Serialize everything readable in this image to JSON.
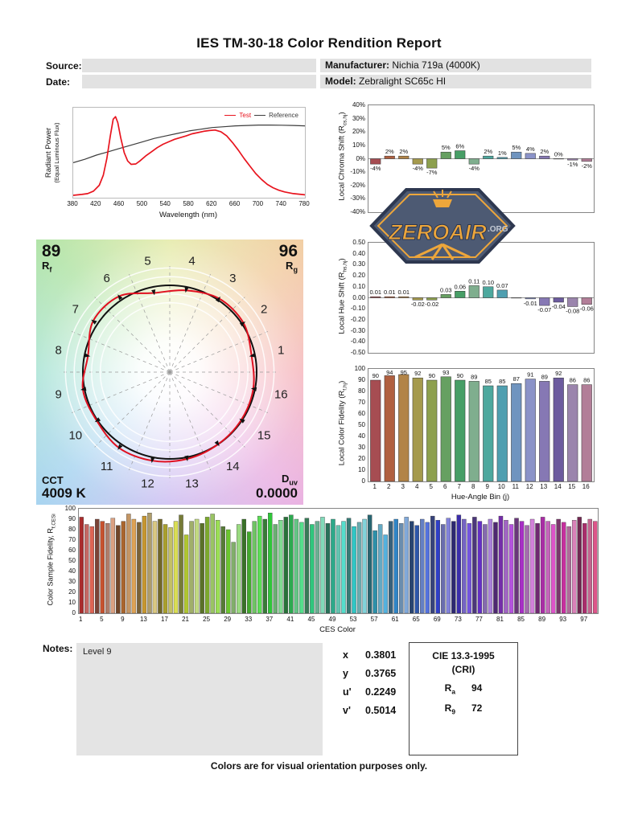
{
  "title": "IES TM-30-18 Color Rendition Report",
  "header": {
    "source_label": "Source:",
    "date_label": "Date:",
    "manufacturer_label": "Manufacturer:",
    "manufacturer_value": "Nichia 719a (4000K)",
    "model_label": "Model:",
    "model_value": "Zebralight SC65c HI"
  },
  "watermark": {
    "name_main": "ZEROAIR",
    "name_suffix": ".ORG",
    "color_body": "#4d5a73",
    "color_accent": "#eda63b",
    "color_outline": "#2e3850",
    "color_org": "#c3c9d4"
  },
  "cvg": {
    "rf_value": "89",
    "rf_label_main": "R",
    "rf_label_sub": "f",
    "rg_value": "96",
    "rg_label_main": "R",
    "rg_label_sub": "g",
    "cct_label": "CCT",
    "cct_value": "4009 K",
    "duv_label_main": "D",
    "duv_label_sub": "uv",
    "duv_value": "0.0000"
  },
  "notes": {
    "label": "Notes:",
    "content": "Level 9"
  },
  "chromaticity": {
    "rows": [
      {
        "label": "x",
        "value": "0.3801"
      },
      {
        "label": "y",
        "value": "0.3765"
      },
      {
        "label": "u'",
        "value": "0.2249"
      },
      {
        "label": "v'",
        "value": "0.5014"
      }
    ]
  },
  "cri_box": {
    "title": "CIE 13.3-1995",
    "subtitle": "(CRI)",
    "rows": [
      {
        "label_main": "R",
        "label_sub": "a",
        "value": "94"
      },
      {
        "label_main": "R",
        "label_sub": "9",
        "value": "72"
      }
    ]
  },
  "footer": "Colors are for visual orientation purposes only.",
  "bin_colors": [
    "#a64d52",
    "#b06040",
    "#b28447",
    "#a59a4d",
    "#8da04e",
    "#66a061",
    "#479e66",
    "#7fae8e",
    "#4da89e",
    "#4f9fb0",
    "#6f94bf",
    "#8b93c8",
    "#8678b4",
    "#6c5b9e",
    "#9b85ad",
    "#b27e98"
  ],
  "chart_data": [
    {
      "id": "spd",
      "type": "line",
      "xlabel": "Wavelength (nm)",
      "ylabel_line1": "Radiant Power",
      "ylabel_line2": "(Equal Luminous Flux)",
      "x_range": [
        380,
        780
      ],
      "y_range": [
        0,
        1
      ],
      "x_ticks": [
        380,
        420,
        460,
        500,
        540,
        580,
        620,
        660,
        700,
        740,
        780
      ],
      "legend": [
        {
          "name": "Test",
          "color": "#e8141e"
        },
        {
          "name": "Reference",
          "color": "#3c3c3c"
        }
      ],
      "series": [
        {
          "name": "Reference",
          "color": "#3c3c3c",
          "points": [
            [
              380,
              0.4
            ],
            [
              400,
              0.44
            ],
            [
              420,
              0.49
            ],
            [
              440,
              0.53
            ],
            [
              460,
              0.57
            ],
            [
              480,
              0.61
            ],
            [
              500,
              0.65
            ],
            [
              520,
              0.69
            ],
            [
              540,
              0.72
            ],
            [
              560,
              0.75
            ],
            [
              580,
              0.78
            ],
            [
              600,
              0.8
            ],
            [
              620,
              0.82
            ],
            [
              640,
              0.83
            ],
            [
              660,
              0.84
            ],
            [
              680,
              0.845
            ],
            [
              700,
              0.85
            ],
            [
              720,
              0.85
            ],
            [
              740,
              0.848
            ],
            [
              760,
              0.845
            ],
            [
              780,
              0.84
            ]
          ]
        },
        {
          "name": "Test",
          "color": "#e8141e",
          "points": [
            [
              380,
              0.01
            ],
            [
              395,
              0.02
            ],
            [
              405,
              0.03
            ],
            [
              415,
              0.06
            ],
            [
              425,
              0.13
            ],
            [
              432,
              0.25
            ],
            [
              438,
              0.45
            ],
            [
              444,
              0.72
            ],
            [
              449,
              0.92
            ],
            [
              453,
              0.95
            ],
            [
              457,
              0.88
            ],
            [
              462,
              0.7
            ],
            [
              468,
              0.52
            ],
            [
              474,
              0.42
            ],
            [
              480,
              0.38
            ],
            [
              488,
              0.385
            ],
            [
              495,
              0.42
            ],
            [
              505,
              0.48
            ],
            [
              515,
              0.53
            ],
            [
              525,
              0.58
            ],
            [
              535,
              0.62
            ],
            [
              545,
              0.65
            ],
            [
              555,
              0.68
            ],
            [
              565,
              0.7
            ],
            [
              575,
              0.72
            ],
            [
              585,
              0.745
            ],
            [
              595,
              0.76
            ],
            [
              605,
              0.775
            ],
            [
              615,
              0.785
            ],
            [
              625,
              0.79
            ],
            [
              635,
              0.77
            ],
            [
              645,
              0.72
            ],
            [
              655,
              0.64
            ],
            [
              665,
              0.55
            ],
            [
              675,
              0.45
            ],
            [
              685,
              0.36
            ],
            [
              695,
              0.27
            ],
            [
              705,
              0.2
            ],
            [
              715,
              0.14
            ],
            [
              725,
              0.1
            ],
            [
              735,
              0.07
            ],
            [
              745,
              0.05
            ],
            [
              760,
              0.03
            ],
            [
              780,
              0.015
            ]
          ]
        }
      ]
    },
    {
      "id": "local_chroma_shift",
      "type": "bar",
      "ylabel_main": "Local Chroma Shift (R",
      "ylabel_sub": "cs,hj",
      "ylabel_post": ")",
      "categories": [
        1,
        2,
        3,
        4,
        5,
        6,
        7,
        8,
        9,
        10,
        11,
        12,
        13,
        14,
        15,
        16
      ],
      "values_pct": [
        -4,
        2,
        2,
        -4,
        -7,
        5,
        6,
        -4,
        2,
        1,
        5,
        4,
        2,
        0,
        -1,
        -2
      ],
      "ylim": [
        -40,
        40
      ],
      "ytick_step": 10
    },
    {
      "id": "local_hue_shift",
      "type": "bar",
      "ylabel_main": "Local Hue Shift (R",
      "ylabel_sub": "hs,hj",
      "ylabel_post": ")",
      "categories": [
        1,
        2,
        3,
        4,
        5,
        6,
        7,
        8,
        9,
        10,
        11,
        12,
        13,
        14,
        15,
        16
      ],
      "values": [
        0.01,
        0.01,
        0.01,
        -0.02,
        -0.02,
        0.03,
        0.06,
        0.11,
        0.1,
        0.07,
        0,
        -0.01,
        -0.07,
        -0.04,
        -0.08,
        -0.06
      ],
      "ylim": [
        -0.5,
        0.5
      ],
      "ytick_step": 0.1
    },
    {
      "id": "local_color_fidelity",
      "type": "bar",
      "ylabel_main": "Local Color Fidelity (R",
      "ylabel_sub": "f,hj",
      "ylabel_post": ")",
      "xlabel": "Hue-Angle Bin (j)",
      "categories": [
        1,
        2,
        3,
        4,
        5,
        6,
        7,
        8,
        9,
        10,
        11,
        12,
        13,
        14,
        15,
        16
      ],
      "values": [
        90,
        94,
        95,
        92,
        90,
        93,
        90,
        89,
        85,
        85,
        87,
        91,
        89,
        92,
        86,
        86
      ],
      "ylim": [
        0,
        100
      ],
      "ytick_step": 10
    },
    {
      "id": "ces_fidelity",
      "type": "bar",
      "ylabel_main": "Color Sample Fidelity, R",
      "ylabel_sub": "f,CESi",
      "ylabel_post": "",
      "xlabel": "CES Color",
      "x_tick_labels": [
        1,
        5,
        9,
        13,
        17,
        21,
        25,
        29,
        33,
        37,
        41,
        45,
        49,
        53,
        57,
        61,
        65,
        69,
        73,
        77,
        81,
        85,
        89,
        93,
        97
      ],
      "ylim": [
        0,
        100
      ],
      "ytick_step": 10,
      "values": [
        92,
        85,
        83,
        90,
        88,
        86,
        91,
        84,
        88,
        95,
        90,
        87,
        93,
        96,
        88,
        90,
        85,
        82,
        88,
        94,
        75,
        88,
        90,
        86,
        92,
        95,
        89,
        83,
        80,
        68,
        85,
        90,
        78,
        88,
        93,
        90,
        96,
        85,
        89,
        92,
        94,
        90,
        87,
        91,
        85,
        88,
        92,
        86,
        90,
        84,
        88,
        91,
        83,
        87,
        90,
        94,
        79,
        85,
        75,
        88,
        90,
        86,
        92,
        88,
        84,
        90,
        87,
        93,
        89,
        85,
        91,
        88,
        94,
        90,
        86,
        92,
        88,
        85,
        90,
        87,
        93,
        89,
        85,
        91,
        88,
        84,
        90,
        86,
        92,
        88,
        85,
        90,
        87,
        83,
        89,
        92,
        86,
        90,
        88
      ]
    },
    {
      "id": "color_vector_graphic",
      "type": "radar",
      "rf": 89,
      "rg": 96,
      "cct": "4009 K",
      "duv": "0.0000",
      "reference_radius_rel": 1.0,
      "grid_rings_rel": [
        0.8,
        0.9,
        1.1,
        1.2
      ],
      "test_radii_rel": [
        0.96,
        1.02,
        1.02,
        0.96,
        0.93,
        1.05,
        1.06,
        0.96,
        1.02,
        1.01,
        1.05,
        1.04,
        1.02,
        1.0,
        0.99,
        0.98
      ]
    }
  ]
}
